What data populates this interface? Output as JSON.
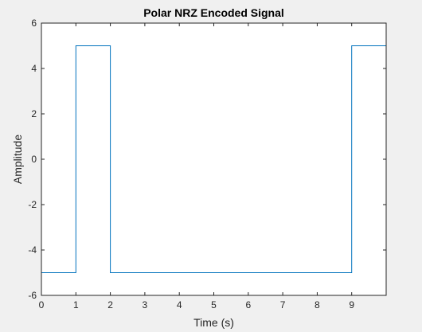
{
  "chart_data": {
    "type": "line",
    "title": "Polar NRZ Encoded Signal",
    "xlabel": "Time (s)",
    "ylabel": "Amplitude",
    "xlim": [
      0,
      10
    ],
    "ylim": [
      -6,
      6
    ],
    "xticks": [
      0,
      1,
      2,
      3,
      4,
      5,
      6,
      7,
      8,
      9
    ],
    "xtick_labels": [
      "0",
      "1",
      "2",
      "3",
      "4",
      "5",
      "6",
      "7",
      "8",
      "9"
    ],
    "yticks": [
      -6,
      -4,
      -2,
      0,
      2,
      4,
      6
    ],
    "ytick_labels": [
      "-6",
      "-4",
      "-2",
      "0",
      "2",
      "4",
      "6"
    ],
    "grid": false,
    "series": [
      {
        "color": "#0072BD",
        "x": [
          0,
          1,
          1,
          2,
          2,
          9,
          9,
          10
        ],
        "y": [
          -5,
          -5,
          5,
          5,
          -5,
          -5,
          5,
          5
        ]
      }
    ]
  },
  "colors": {
    "figure_background": "#f0f0f0",
    "axes_background": "#ffffff",
    "axes_line": "#262626",
    "line": "#0072BD"
  }
}
